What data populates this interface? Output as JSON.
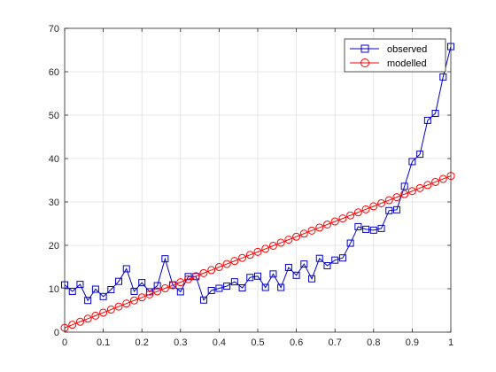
{
  "chart_data": {
    "type": "line",
    "title": "",
    "xlabel": "",
    "ylabel": "",
    "xlim": [
      0,
      1
    ],
    "ylim": [
      0,
      70
    ],
    "xticks": [
      0,
      0.1,
      0.2,
      0.3,
      0.4,
      0.5,
      0.6,
      0.7,
      0.8,
      0.9,
      1
    ],
    "xtick_labels": [
      "0",
      "0.1",
      "0.2",
      "0.3",
      "0.4",
      "0.5",
      "0.6",
      "0.7",
      "0.8",
      "0.9",
      "1"
    ],
    "yticks": [
      0,
      10,
      20,
      30,
      40,
      50,
      60,
      70
    ],
    "ytick_labels": [
      "0",
      "10",
      "20",
      "30",
      "40",
      "50",
      "60",
      "70"
    ],
    "grid": true,
    "legend_position": "top-right",
    "x": [
      0,
      0.02,
      0.04,
      0.06,
      0.08,
      0.1,
      0.12,
      0.14,
      0.16,
      0.18,
      0.2,
      0.22,
      0.24,
      0.26,
      0.28,
      0.3,
      0.32,
      0.34,
      0.36,
      0.38,
      0.4,
      0.42,
      0.44,
      0.46,
      0.48,
      0.5,
      0.52,
      0.54,
      0.56,
      0.58,
      0.6,
      0.62,
      0.64,
      0.66,
      0.68,
      0.7,
      0.72,
      0.74,
      0.76,
      0.78,
      0.8,
      0.82,
      0.84,
      0.86,
      0.88,
      0.9,
      0.92,
      0.94,
      0.96,
      0.98,
      1
    ],
    "series": [
      {
        "name": "observed",
        "color": "#0000cc",
        "marker": "square",
        "values": [
          10.9,
          9.4,
          11.0,
          7.3,
          9.9,
          8.2,
          9.8,
          11.7,
          14.6,
          9.4,
          11.4,
          9.3,
          10.7,
          16.9,
          10.9,
          9.3,
          12.8,
          12.8,
          7.4,
          9.6,
          10.1,
          10.6,
          11.6,
          10.2,
          12.6,
          12.9,
          10.3,
          13.4,
          10.3,
          14.9,
          13.1,
          15.7,
          12.3,
          17.0,
          15.3,
          16.6,
          17.1,
          20.5,
          24.3,
          23.7,
          23.5,
          23.9,
          28.0,
          28.2,
          33.6,
          39.3,
          41.0,
          48.8,
          50.4,
          58.8,
          65.8
        ]
      },
      {
        "name": "modelled",
        "color": "#ff0000",
        "marker": "circle",
        "values": [
          1.0,
          1.7,
          2.4,
          3.1,
          3.8,
          4.5,
          5.2,
          5.9,
          6.6,
          7.3,
          8.0,
          8.7,
          9.4,
          10.1,
          10.8,
          11.5,
          12.2,
          12.9,
          13.6,
          14.3,
          15.0,
          15.7,
          16.4,
          17.1,
          17.8,
          18.5,
          19.2,
          19.9,
          20.6,
          21.3,
          22.0,
          22.7,
          23.4,
          24.1,
          24.8,
          25.5,
          26.2,
          26.9,
          27.6,
          28.3,
          29.0,
          29.7,
          30.4,
          31.1,
          31.8,
          32.5,
          33.2,
          33.9,
          34.6,
          35.3,
          36.0
        ]
      }
    ]
  }
}
